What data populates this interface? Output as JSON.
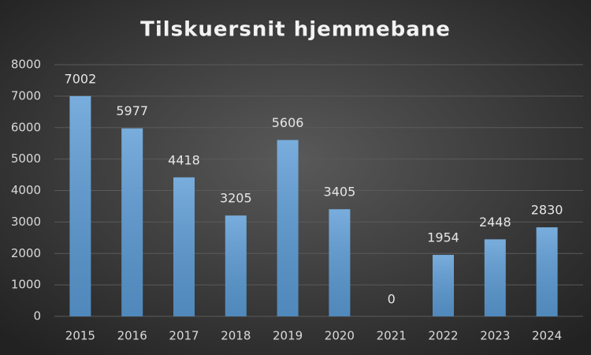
{
  "chart_data": {
    "type": "bar",
    "title": "Tilskuersnit hjemmebane",
    "categories": [
      "2015",
      "2016",
      "2017",
      "2018",
      "2019",
      "2020",
      "2021",
      "2022",
      "2023",
      "2024"
    ],
    "values": [
      7002,
      5977,
      4418,
      3205,
      5606,
      3405,
      0,
      1954,
      2448,
      2830
    ],
    "color": "#5b9bd5",
    "ylim": [
      0,
      8000
    ],
    "yticks": [
      0,
      1000,
      2000,
      3000,
      4000,
      5000,
      6000,
      7000,
      8000
    ],
    "grid": true
  }
}
